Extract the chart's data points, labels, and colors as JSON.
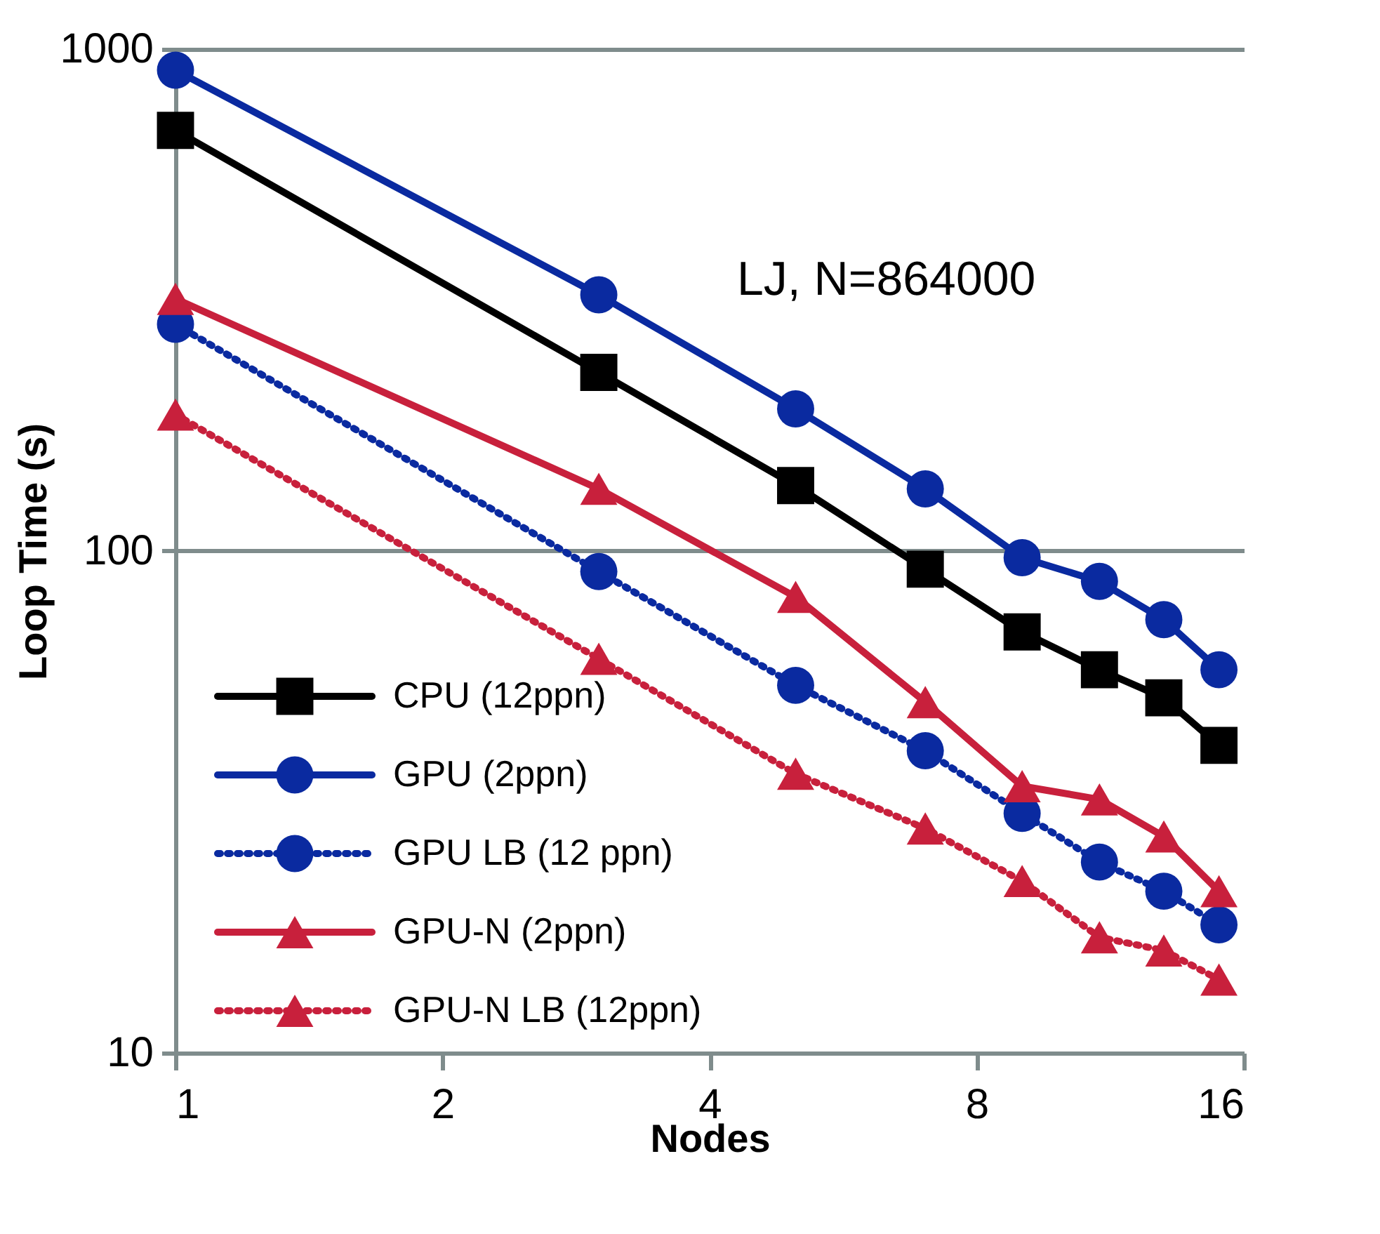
{
  "chart_data": {
    "type": "line",
    "xlabel": "Nodes",
    "ylabel": "Loop Time (s)",
    "annotations": [
      "LJ, N=864000"
    ],
    "x": [
      1,
      3,
      5,
      7,
      9,
      11,
      13,
      15
    ],
    "series": [
      {
        "name": "CPU (12ppn)",
        "color": "#000000",
        "marker": "square",
        "line_style": "solid",
        "values": [
          689,
          227,
          135,
          92,
          69,
          58,
          51,
          41
        ]
      },
      {
        "name": "GPU  (2ppn)",
        "color": "#0a2aa0",
        "marker": "circle",
        "line_style": "solid",
        "values": [
          908,
          324,
          192,
          133,
          97,
          87,
          73,
          58
        ]
      },
      {
        "name": "GPU LB (12 ppn)",
        "color": "#0a2aa0",
        "marker": "circle",
        "line_style": "dotted",
        "values": [
          283,
          91,
          54,
          40,
          30,
          24,
          21,
          18
        ]
      },
      {
        "name": "GPU-N (2ppn)",
        "color": "#c8203c",
        "marker": "triangle",
        "line_style": "solid",
        "values": [
          318,
          133,
          81,
          50,
          34,
          32,
          27,
          21
        ]
      },
      {
        "name": "GPU-N LB (12ppn)",
        "color": "#c8203c",
        "marker": "triangle",
        "line_style": "dotted",
        "values": [
          187,
          61,
          36,
          28,
          22,
          17,
          16,
          14
        ]
      }
    ],
    "xlim": [
      1,
      16
    ],
    "xticks": [
      1,
      2,
      4,
      8,
      16
    ],
    "ylim": [
      10,
      1000
    ],
    "yticks": [
      10,
      100,
      1000
    ],
    "log": "xy",
    "grid": "y",
    "legend": "bottom left"
  }
}
